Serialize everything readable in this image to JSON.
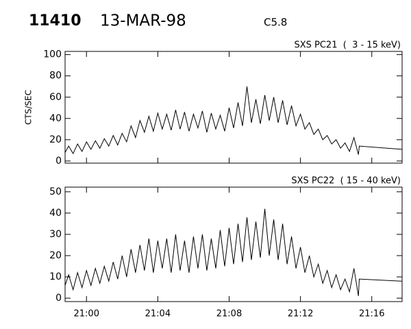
{
  "header": {
    "id": "11410",
    "date": "13-MAR-98",
    "class": "C5.8"
  },
  "chart_data": [
    {
      "type": "line",
      "title": "SXS PC21  (  3 - 15 keV)",
      "ylabel": "CTS/SEC",
      "x": [
        1258.8,
        1259,
        1259.25,
        1259.5,
        1259.75,
        1260,
        1260.25,
        1260.5,
        1260.75,
        1261,
        1261.25,
        1261.5,
        1261.75,
        1262,
        1262.25,
        1262.5,
        1262.75,
        1263,
        1263.25,
        1263.5,
        1263.75,
        1264,
        1264.25,
        1264.5,
        1264.75,
        1265,
        1265.25,
        1265.5,
        1265.75,
        1266,
        1266.25,
        1266.5,
        1266.75,
        1267,
        1267.25,
        1267.5,
        1267.75,
        1268,
        1268.25,
        1268.5,
        1268.75,
        1269,
        1269.25,
        1269.5,
        1269.75,
        1270,
        1270.25,
        1270.5,
        1270.75,
        1271,
        1271.25,
        1271.5,
        1271.75,
        1272,
        1272.25,
        1272.5,
        1272.75,
        1273,
        1273.25,
        1273.5,
        1273.75,
        1274,
        1274.25,
        1274.5,
        1274.75,
        1275,
        1275.25,
        1275.3,
        1277.7
      ],
      "series": [
        {
          "color": "#000000",
          "values": [
            8,
            14,
            7,
            16,
            9,
            18,
            11,
            19,
            12,
            21,
            14,
            24,
            15,
            26,
            18,
            33,
            22,
            38,
            27,
            42,
            28,
            45,
            30,
            44,
            29,
            48,
            30,
            46,
            28,
            44,
            31,
            47,
            27,
            45,
            30,
            43,
            28,
            50,
            31,
            55,
            33,
            70,
            36,
            58,
            35,
            62,
            38,
            60,
            36,
            57,
            34,
            52,
            33,
            44,
            30,
            36,
            25,
            30,
            20,
            24,
            16,
            20,
            12,
            17,
            9,
            22,
            6,
            14,
            11
          ]
        }
      ],
      "xlim": [
        1258.8,
        1277.7
      ],
      "ylim": [
        -2,
        103
      ],
      "xticks": [
        1260,
        1264,
        1268,
        1272,
        1276
      ],
      "yticks": [
        0,
        20,
        40,
        60,
        80,
        100
      ]
    },
    {
      "type": "line",
      "title": "SXS PC22  ( 15 - 40 keV)",
      "x": [
        1258.8,
        1259,
        1259.25,
        1259.5,
        1259.75,
        1260,
        1260.25,
        1260.5,
        1260.75,
        1261,
        1261.25,
        1261.5,
        1261.75,
        1262,
        1262.25,
        1262.5,
        1262.75,
        1263,
        1263.25,
        1263.5,
        1263.75,
        1264,
        1264.25,
        1264.5,
        1264.75,
        1265,
        1265.25,
        1265.5,
        1265.75,
        1266,
        1266.25,
        1266.5,
        1266.75,
        1267,
        1267.25,
        1267.5,
        1267.75,
        1268,
        1268.25,
        1268.5,
        1268.75,
        1269,
        1269.25,
        1269.5,
        1269.75,
        1270,
        1270.25,
        1270.5,
        1270.75,
        1271,
        1271.25,
        1271.5,
        1271.75,
        1272,
        1272.25,
        1272.5,
        1272.75,
        1273,
        1273.25,
        1273.5,
        1273.75,
        1274,
        1274.25,
        1274.5,
        1274.75,
        1275,
        1275.25,
        1275.3,
        1277.7
      ],
      "series": [
        {
          "color": "#000000",
          "values": [
            6,
            11,
            4,
            12,
            5,
            13,
            6,
            14,
            7,
            15,
            8,
            17,
            9,
            20,
            10,
            23,
            12,
            25,
            13,
            28,
            12,
            27,
            14,
            28,
            12,
            30,
            13,
            27,
            12,
            29,
            14,
            30,
            13,
            28,
            14,
            32,
            15,
            33,
            16,
            35,
            17,
            38,
            18,
            36,
            19,
            42,
            20,
            37,
            18,
            35,
            16,
            29,
            14,
            24,
            12,
            20,
            10,
            16,
            7,
            13,
            5,
            11,
            4,
            9,
            3,
            14,
            1,
            9,
            8
          ]
        }
      ],
      "xlim": [
        1258.8,
        1277.7
      ],
      "ylim": [
        -1.6,
        52.2
      ],
      "xticks": [
        {
          "value": 1260,
          "label": "21:00"
        },
        {
          "value": 1264,
          "label": "21:04"
        },
        {
          "value": 1268,
          "label": "21:08"
        },
        {
          "value": 1272,
          "label": "21:12"
        },
        {
          "value": 1276,
          "label": "21:16"
        }
      ],
      "yticks": [
        0,
        10,
        20,
        30,
        40,
        50
      ]
    }
  ]
}
